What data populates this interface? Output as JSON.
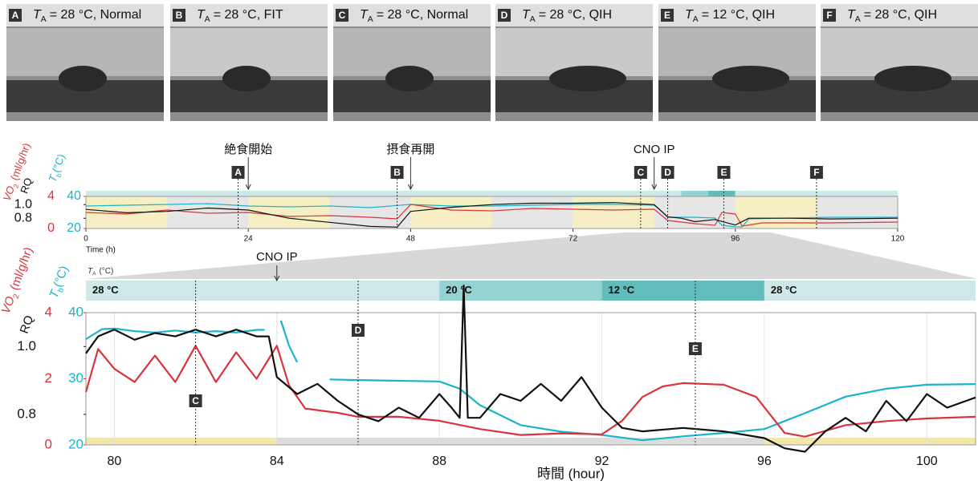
{
  "panels": [
    {
      "letter": "A",
      "symbol": "T",
      "subscript": "A",
      "caption": "= 28 °C, Normal"
    },
    {
      "letter": "B",
      "symbol": "T",
      "subscript": "A",
      "caption": "= 28 °C, FIT"
    },
    {
      "letter": "C",
      "symbol": "T",
      "subscript": "A",
      "caption": "= 28 °C, Normal"
    },
    {
      "letter": "D",
      "symbol": "T",
      "subscript": "A",
      "caption": "= 28 °C, QIH"
    },
    {
      "letter": "E",
      "symbol": "T",
      "subscript": "A",
      "caption": "= 12 °C, QIH"
    },
    {
      "letter": "F",
      "symbol": "T",
      "subscript": "A",
      "caption": "= 28 °C, QIH"
    }
  ],
  "ta_segments": [
    {
      "label": "28 °C",
      "start": 0,
      "end": 88,
      "color": "#cfe8e8"
    },
    {
      "label": "20 °C",
      "start": 88,
      "end": 92,
      "color": "#95d2d2"
    },
    {
      "label": "12 °C",
      "start": 92,
      "end": 96,
      "color": "#62bcbc"
    },
    {
      "label": "28 °C",
      "start": 96,
      "end": 120,
      "color": "#cfe8e8"
    }
  ],
  "light_periods": [
    [
      0,
      12
    ],
    [
      24,
      36
    ],
    [
      48,
      60
    ],
    [
      72,
      84
    ],
    [
      96,
      108
    ]
  ],
  "chart_data": [
    {
      "type": "line",
      "x_label": "Time (h)",
      "xlim": [
        0,
        120
      ],
      "xticks": [
        0,
        24,
        48,
        72,
        96,
        120
      ],
      "ylim": [
        20,
        40
      ],
      "yticks": [
        20,
        40
      ],
      "y2lim": [
        0,
        4
      ],
      "y2ticks": [
        0,
        4
      ],
      "y3lim": [
        0.65,
        1.12
      ],
      "y3ticks": [
        0.8,
        {
          "value": 1,
          "label": "1.0"
        }
      ],
      "y_title": {
        "symbol": "T",
        "subscript": "b",
        "unit": "(°C)"
      },
      "y2_title": {
        "symbol": "VO",
        "subscript": "2",
        "unit": "(ml/g/hr)"
      },
      "y3_title": "RQ",
      "annotations": [
        {
          "text": "絶食開始",
          "x": 24
        },
        {
          "text": "摂食再開",
          "x": 48
        },
        {
          "text": "CNO IP",
          "x": 84
        }
      ],
      "markers": [
        {
          "label": "A",
          "x": 22.5
        },
        {
          "label": "B",
          "x": 46
        },
        {
          "label": "C",
          "x": 82
        },
        {
          "label": "D",
          "x": 86
        },
        {
          "label": "E",
          "x": 94.3
        },
        {
          "label": "F",
          "x": 108
        }
      ],
      "series": [
        {
          "axis": "y",
          "color": "#1ab4cc",
          "x": [
            0,
            6,
            12,
            18,
            24,
            30,
            36,
            42,
            48,
            54,
            60,
            66,
            72,
            78,
            84,
            85,
            86,
            90,
            93,
            94,
            96,
            97,
            98,
            104,
            110,
            120
          ],
          "values": [
            34,
            34.5,
            35,
            35.5,
            34,
            33.5,
            34,
            33,
            35,
            34,
            34,
            34.5,
            35,
            35,
            34.5,
            31,
            27,
            27,
            26.5,
            22,
            21,
            21,
            26,
            26.5,
            27,
            27
          ]
        },
        {
          "axis": "y2",
          "color": "#d9343d",
          "x": [
            0,
            6,
            12,
            18,
            24,
            30,
            36,
            42,
            46,
            48,
            54,
            60,
            66,
            72,
            78,
            84,
            86,
            90,
            93,
            94,
            96,
            97,
            100,
            110,
            120
          ],
          "values": [
            2,
            1.8,
            2.3,
            1.9,
            2,
            1.5,
            1.6,
            1.4,
            1.2,
            3,
            2.3,
            2.2,
            2.5,
            2.4,
            2.3,
            2.4,
            1,
            0.6,
            0.4,
            2,
            1.8,
            0.3,
            0.7,
            0.7,
            0.8
          ]
        },
        {
          "axis": "y3",
          "color": "#111111",
          "x": [
            0,
            6,
            12,
            18,
            24,
            30,
            36,
            42,
            46,
            48,
            54,
            60,
            66,
            72,
            78,
            84,
            86,
            88,
            90,
            93,
            96,
            98,
            104,
            110,
            120
          ],
          "values": [
            0.93,
            0.88,
            0.9,
            0.95,
            0.92,
            0.8,
            0.74,
            0.68,
            0.67,
            0.9,
            0.96,
            1,
            1.02,
            1.02,
            1.03,
            1,
            0.82,
            0.8,
            0.75,
            0.78,
            0.7,
            0.8,
            0.8,
            0.79,
            0.8
          ]
        }
      ]
    },
    {
      "type": "line",
      "x_label": "時間 (hour)",
      "ta_title": {
        "symbol": "T",
        "subscript": "A",
        "unit": "(°C)"
      },
      "xlim": [
        79.3,
        101.2
      ],
      "xticks": [
        80,
        84,
        88,
        92,
        96,
        100
      ],
      "ylim": [
        20,
        40
      ],
      "yticks": [
        20,
        30,
        40
      ],
      "y2lim": [
        0,
        4
      ],
      "y2ticks": [
        0,
        2,
        4
      ],
      "y3lim": [
        0.71,
        1.1
      ],
      "y3ticks": [
        0.8,
        {
          "value": 1,
          "label": "1.0"
        }
      ],
      "y_title": {
        "symbol": "T",
        "subscript": "b",
        "unit": "(°C)"
      },
      "y2_title": {
        "symbol": "VO",
        "subscript": "2",
        "unit": "(ml/g/hr)"
      },
      "y3_title": "RQ",
      "annotations": [
        {
          "text": "CNO IP",
          "x": 84
        }
      ],
      "markers": [
        {
          "label": "C",
          "x": 82
        },
        {
          "label": "D",
          "x": 86
        },
        {
          "label": "E",
          "x": 94.3
        }
      ],
      "series": [
        {
          "axis": "y",
          "color": "#1ab4cc",
          "x": [
            79.3,
            79.7,
            80,
            80.5,
            81,
            81.5,
            82,
            82.5,
            83,
            83.5,
            83.7,
            83.9,
            84.1,
            84.3,
            84.5,
            84.9,
            85.3,
            86,
            87,
            88,
            88.5,
            89,
            89.5,
            90,
            91,
            92,
            93,
            94,
            95,
            96,
            97,
            98,
            99,
            100,
            101.2
          ],
          "values": [
            36,
            37.5,
            37.6,
            37.2,
            37,
            37.3,
            37,
            37.2,
            37,
            37.4,
            37.4,
            null,
            38.8,
            35,
            32.5,
            null,
            29.9,
            29.8,
            29.7,
            29.6,
            28.5,
            26,
            24.5,
            23,
            22,
            21.5,
            20.7,
            21.3,
            21.8,
            22.4,
            24.8,
            27.3,
            28.5,
            29.1,
            29.2
          ]
        },
        {
          "axis": "y2",
          "color": "#d9343d",
          "x": [
            79.3,
            79.6,
            80,
            80.5,
            81,
            81.5,
            82,
            82.5,
            83,
            83.5,
            84,
            84.3,
            84.7,
            85.5,
            86,
            87,
            88,
            89,
            90,
            91,
            92,
            92.5,
            93,
            93.5,
            94,
            95,
            95.8,
            96.5,
            97,
            98,
            99,
            100,
            101.2
          ],
          "values": [
            1.6,
            2.9,
            2.3,
            1.9,
            2.7,
            1.9,
            3.0,
            1.9,
            2.8,
            2.0,
            3.0,
            1.8,
            1.1,
            0.97,
            0.85,
            0.85,
            0.73,
            0.48,
            0.3,
            0.35,
            0.32,
            0.73,
            1.45,
            1.77,
            1.87,
            1.82,
            1.45,
            0.36,
            0.25,
            0.6,
            0.72,
            0.8,
            0.85
          ]
        },
        {
          "axis": "y3",
          "color": "#111111",
          "x": [
            79.3,
            79.6,
            80,
            80.5,
            81,
            81.5,
            82,
            82.5,
            83,
            83.5,
            83.8,
            84,
            84.5,
            85,
            85.5,
            86,
            86.5,
            87,
            87.5,
            88,
            88.3,
            88.5,
            88.6,
            88.7,
            89,
            89.5,
            90,
            90.5,
            91,
            91.5,
            92,
            92.5,
            93,
            94,
            95,
            96,
            96.5,
            97,
            97.5,
            98,
            98.5,
            99,
            99.5,
            100,
            100.5,
            101.2
          ],
          "values": [
            0.98,
            1.03,
            1.05,
            1.02,
            1.04,
            1.03,
            1.05,
            1.03,
            1.05,
            1.03,
            1.03,
            0.91,
            0.86,
            0.89,
            0.84,
            0.8,
            0.78,
            0.82,
            0.79,
            0.86,
            0.82,
            0.79,
            1.18,
            0.79,
            0.79,
            0.86,
            0.84,
            0.89,
            0.84,
            0.91,
            0.82,
            0.76,
            0.75,
            0.76,
            0.75,
            0.73,
            0.7,
            0.69,
            0.75,
            0.79,
            0.75,
            0.84,
            0.78,
            0.86,
            0.82,
            0.85
          ]
        }
      ]
    }
  ]
}
